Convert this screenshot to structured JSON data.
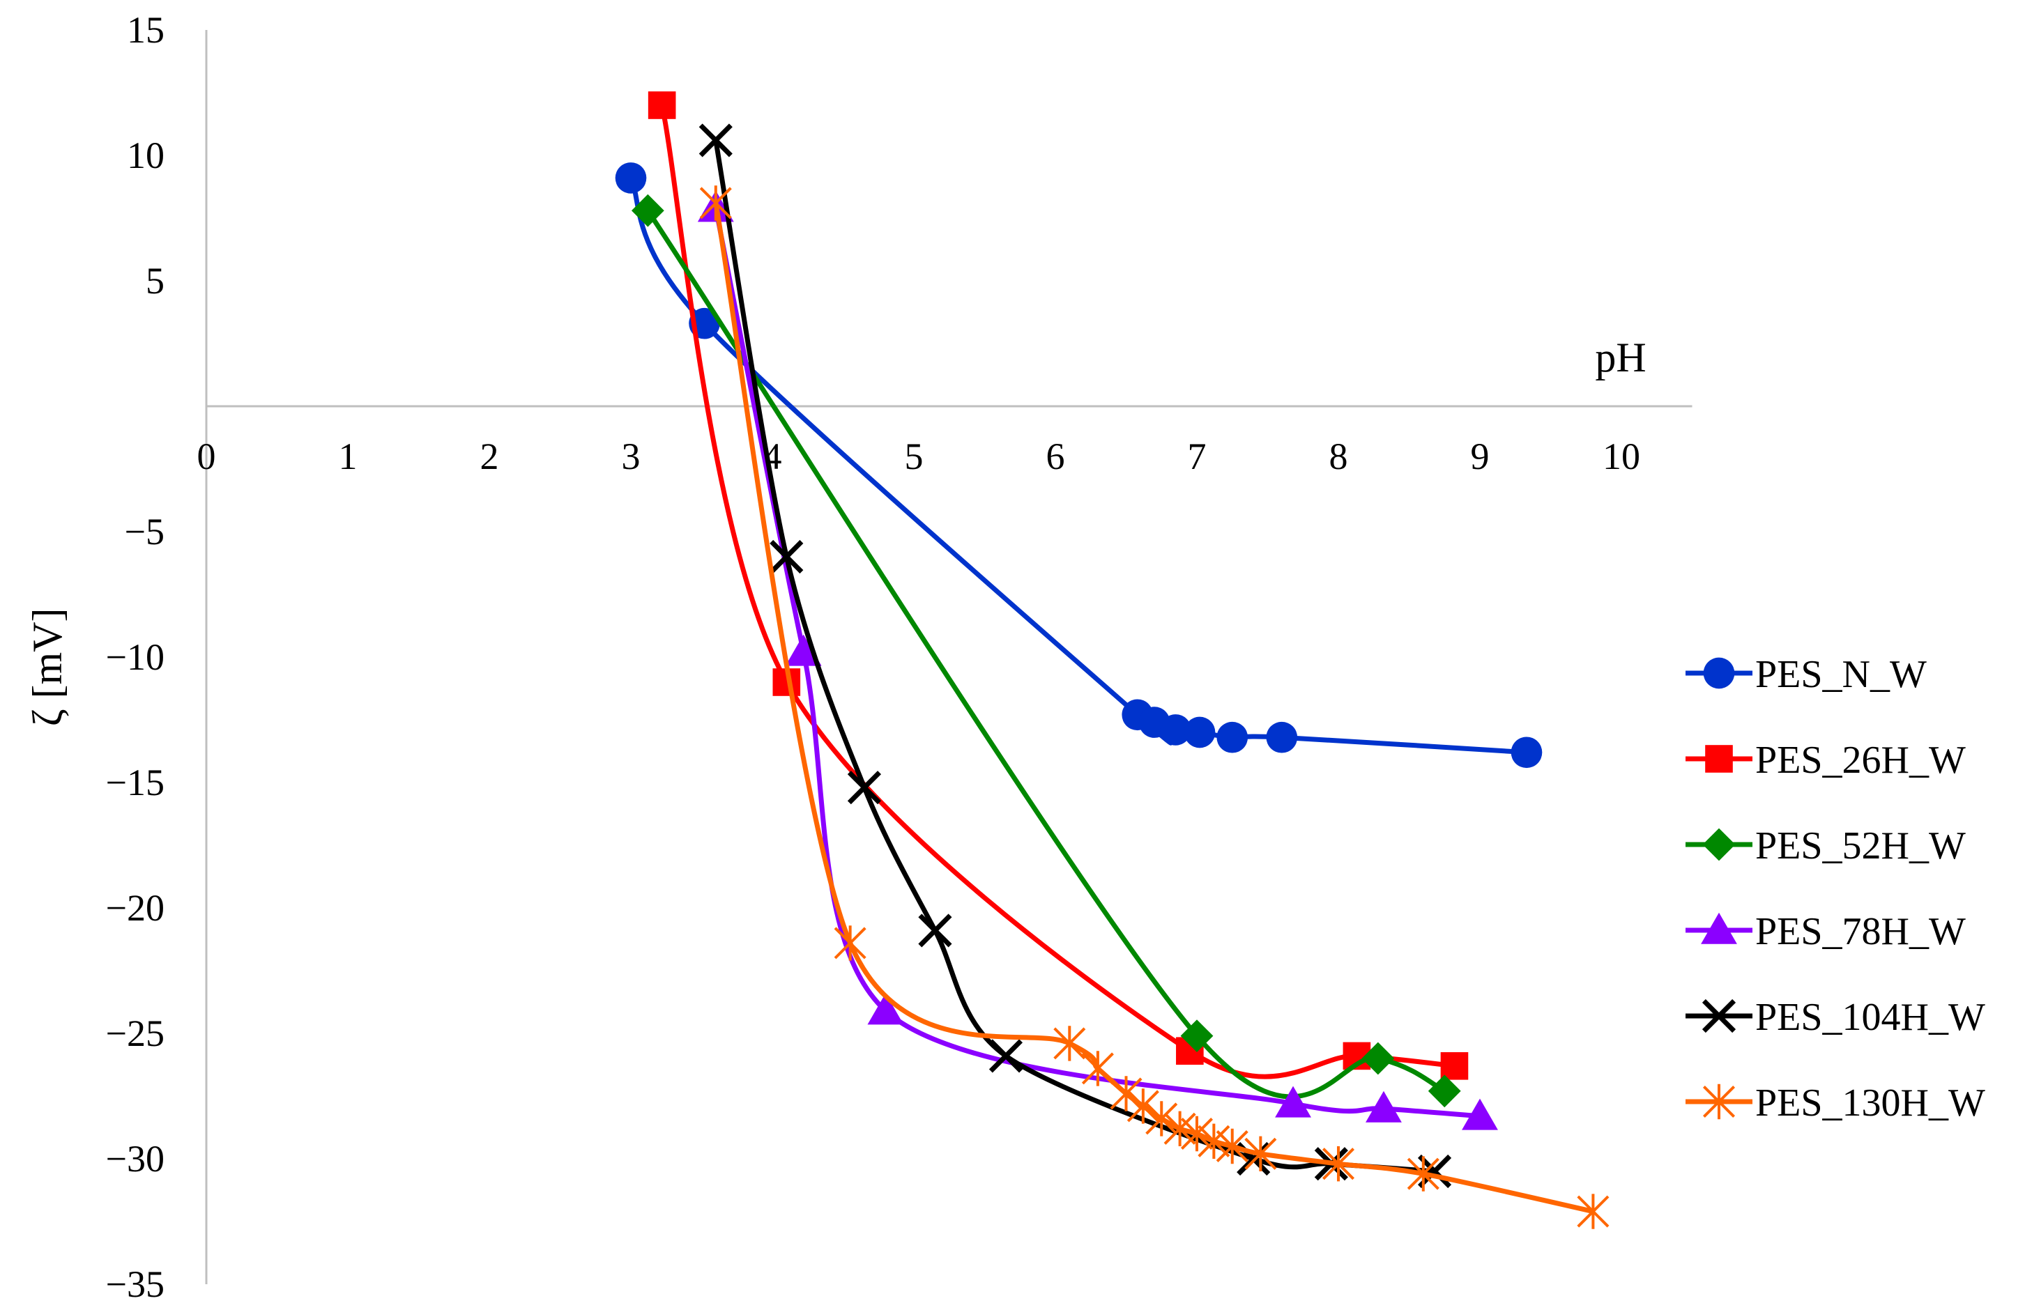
{
  "chart_data": {
    "type": "line",
    "xlabel": "pH",
    "ylabel": "ζ [mV]",
    "xlim": [
      0,
      10.5
    ],
    "ylim": [
      -35,
      15
    ],
    "xticks": [
      "0",
      "1",
      "2",
      "3",
      "4",
      "5",
      "6",
      "7",
      "8",
      "9",
      "10"
    ],
    "yticks": [
      "15",
      "10",
      "5",
      "−5",
      "−10",
      "−15",
      "−20",
      "−25",
      "−30",
      "−35"
    ],
    "grid": false,
    "legend_position": "right",
    "smooth_lines": true,
    "series": [
      {
        "name": "PES_N_W",
        "color": "#0033CC",
        "marker": "circle",
        "x": [
          3.0,
          3.52,
          6.58,
          6.7,
          6.85,
          7.02,
          7.25,
          7.6,
          9.33
        ],
        "y": [
          9.1,
          3.3,
          -12.3,
          -12.6,
          -12.9,
          -13.0,
          -13.2,
          -13.2,
          -13.8
        ]
      },
      {
        "name": "PES_26H_W",
        "color": "#FF0000",
        "marker": "square",
        "x": [
          3.22,
          4.1,
          6.95,
          8.13,
          8.82
        ],
        "y": [
          12.0,
          -11.0,
          -25.7,
          -25.9,
          -26.3
        ]
      },
      {
        "name": "PES_52H_W",
        "color": "#008800",
        "marker": "diamond",
        "x": [
          3.12,
          7.0,
          8.28,
          8.75
        ],
        "y": [
          7.8,
          -25.1,
          -26.0,
          -27.3
        ]
      },
      {
        "name": "PES_78H_W",
        "color": "#8B00FF",
        "marker": "triangle",
        "x": [
          3.6,
          4.22,
          4.8,
          7.68,
          8.32,
          9.0
        ],
        "y": [
          7.9,
          -9.8,
          -24.1,
          -27.8,
          -28.0,
          -28.3
        ]
      },
      {
        "name": "PES_104H_W",
        "color": "#000000",
        "marker": "x",
        "x": [
          3.6,
          4.1,
          4.65,
          5.15,
          5.65,
          7.4,
          7.95,
          8.68
        ],
        "y": [
          10.6,
          -6.0,
          -15.2,
          -20.9,
          -25.9,
          -30.0,
          -30.2,
          -30.5
        ]
      },
      {
        "name": "PES_130H_W",
        "color": "#FF6600",
        "marker": "asterisk",
        "x": [
          3.6,
          4.55,
          6.1,
          6.3,
          6.5,
          6.62,
          6.75,
          6.88,
          7.0,
          7.12,
          7.25,
          7.45,
          8.0,
          8.6,
          9.8
        ],
        "y": [
          8.1,
          -21.4,
          -25.4,
          -26.4,
          -27.4,
          -27.9,
          -28.4,
          -28.8,
          -29.0,
          -29.3,
          -29.5,
          -29.8,
          -30.2,
          -30.6,
          -32.1
        ]
      }
    ]
  }
}
